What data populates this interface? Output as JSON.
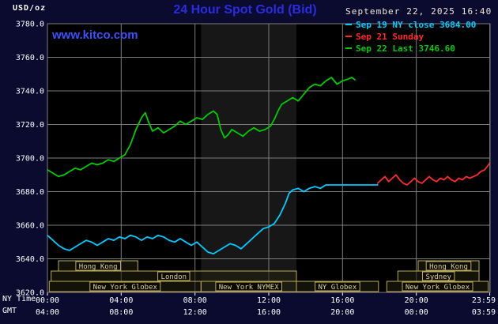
{
  "header": {
    "units": "USD/oz",
    "title": "24 Hour Spot Gold (Bid)",
    "datetime": "September 22, 2025 16:40",
    "watermark": "www.kitco.com"
  },
  "legend": [
    {
      "label": "Sep 19 NY close 3684.00",
      "color": "#00ccff"
    },
    {
      "label": "Sep 21 Sunday",
      "color": "#ff2a2a"
    },
    {
      "label": "Sep 22 Last 3746.60",
      "color": "#00cc00"
    }
  ],
  "axes": {
    "y_ticks": [
      "3780.0",
      "3760.0",
      "3740.0",
      "3720.0",
      "3700.0",
      "3680.0",
      "3660.0",
      "3640.0",
      "3620.0"
    ],
    "tick_hours": [
      0,
      4,
      8,
      12,
      16,
      20,
      23.983
    ],
    "x_rows": [
      {
        "label": "NY Time",
        "ticks": [
          "00:00",
          "04:00",
          "08:00",
          "12:00",
          "16:00",
          "20:00",
          "23:59"
        ]
      },
      {
        "label": "GMT",
        "ticks": [
          "04:00",
          "08:00",
          "12:00",
          "16:00",
          "20:00",
          "00:00",
          "03:59"
        ]
      }
    ]
  },
  "sessions": [
    {
      "row": 0,
      "label": "Hong Kong",
      "start": 0.6,
      "end": 4.9
    },
    {
      "row": 0,
      "label": "Hong Kong",
      "start": 20.1,
      "end": 23.4
    },
    {
      "row": 1,
      "label": "London",
      "start": 0.2,
      "end": 13.5
    },
    {
      "row": 1,
      "label": "Sydney",
      "start": 19.0,
      "end": 23.4
    },
    {
      "row": 2,
      "label": "New York Globex",
      "start": 0.1,
      "end": 8.33
    },
    {
      "row": 2,
      "label": "New York NYMEX",
      "start": 8.33,
      "end": 13.5
    },
    {
      "row": 2,
      "label": "NY Globex",
      "start": 13.5,
      "end": 17.95
    },
    {
      "row": 2,
      "label": "New York Globex",
      "start": 18.4,
      "end": 23.9
    }
  ],
  "chart_data": {
    "type": "line",
    "title": "24 Hour Spot Gold (Bid)",
    "ylabel": "USD/oz",
    "xlabel": "NY Time (hours)",
    "ylim": [
      3620,
      3780
    ],
    "xlim": [
      0,
      24
    ],
    "y_grid_step": 20,
    "grid": true,
    "legend_position": "top-right",
    "highlight_band_x": [
      8.33,
      13.5
    ],
    "series": [
      {
        "name": "Sep 19 NY close",
        "color": "#00ccff",
        "close_value": 3684.0,
        "points": [
          [
            0,
            3654
          ],
          [
            0.3,
            3651
          ],
          [
            0.6,
            3648
          ],
          [
            0.9,
            3646
          ],
          [
            1.2,
            3645
          ],
          [
            1.5,
            3647
          ],
          [
            1.8,
            3649
          ],
          [
            2.1,
            3651
          ],
          [
            2.4,
            3650
          ],
          [
            2.7,
            3648
          ],
          [
            3,
            3650
          ],
          [
            3.3,
            3652
          ],
          [
            3.6,
            3651
          ],
          [
            3.9,
            3653
          ],
          [
            4.2,
            3652
          ],
          [
            4.5,
            3654
          ],
          [
            4.8,
            3653
          ],
          [
            5.1,
            3651
          ],
          [
            5.4,
            3653
          ],
          [
            5.7,
            3652
          ],
          [
            6,
            3654
          ],
          [
            6.3,
            3653
          ],
          [
            6.6,
            3651
          ],
          [
            6.9,
            3650
          ],
          [
            7.2,
            3652
          ],
          [
            7.5,
            3650
          ],
          [
            7.8,
            3648
          ],
          [
            8.1,
            3650
          ],
          [
            8.4,
            3647
          ],
          [
            8.7,
            3644
          ],
          [
            9,
            3643
          ],
          [
            9.3,
            3645
          ],
          [
            9.6,
            3647
          ],
          [
            9.9,
            3649
          ],
          [
            10.2,
            3648
          ],
          [
            10.5,
            3646
          ],
          [
            10.8,
            3649
          ],
          [
            11.1,
            3652
          ],
          [
            11.4,
            3655
          ],
          [
            11.7,
            3658
          ],
          [
            12,
            3659
          ],
          [
            12.3,
            3661
          ],
          [
            12.6,
            3666
          ],
          [
            12.9,
            3673
          ],
          [
            13.1,
            3679
          ],
          [
            13.3,
            3681
          ],
          [
            13.6,
            3682
          ],
          [
            13.9,
            3680
          ],
          [
            14.2,
            3682
          ],
          [
            14.5,
            3683
          ],
          [
            14.8,
            3682
          ],
          [
            15.1,
            3684
          ],
          [
            15.5,
            3684
          ],
          [
            16,
            3684
          ],
          [
            16.5,
            3684
          ],
          [
            17,
            3684
          ],
          [
            17.5,
            3684
          ],
          [
            17.9,
            3684
          ]
        ]
      },
      {
        "name": "Sep 21 Sunday",
        "color": "#ff2a2a",
        "points": [
          [
            17.9,
            3685
          ],
          [
            18.1,
            3687
          ],
          [
            18.3,
            3689
          ],
          [
            18.5,
            3686
          ],
          [
            18.7,
            3688
          ],
          [
            18.9,
            3690
          ],
          [
            19.1,
            3687
          ],
          [
            19.3,
            3685
          ],
          [
            19.5,
            3684
          ],
          [
            19.7,
            3686
          ],
          [
            19.9,
            3688
          ],
          [
            20.1,
            3686
          ],
          [
            20.3,
            3685
          ],
          [
            20.5,
            3687
          ],
          [
            20.7,
            3689
          ],
          [
            20.9,
            3687
          ],
          [
            21.1,
            3686
          ],
          [
            21.3,
            3688
          ],
          [
            21.5,
            3687
          ],
          [
            21.7,
            3689
          ],
          [
            21.9,
            3687
          ],
          [
            22.1,
            3686
          ],
          [
            22.3,
            3688
          ],
          [
            22.5,
            3687
          ],
          [
            22.7,
            3689
          ],
          [
            22.9,
            3688
          ],
          [
            23.1,
            3689
          ],
          [
            23.3,
            3690
          ],
          [
            23.5,
            3692
          ],
          [
            23.7,
            3693
          ],
          [
            23.85,
            3695
          ],
          [
            23.98,
            3697
          ]
        ]
      },
      {
        "name": "Sep 22 Last",
        "color": "#00cc00",
        "last_value": 3746.6,
        "points": [
          [
            0,
            3693
          ],
          [
            0.3,
            3691
          ],
          [
            0.6,
            3689
          ],
          [
            0.9,
            3690
          ],
          [
            1.2,
            3692
          ],
          [
            1.5,
            3694
          ],
          [
            1.8,
            3693
          ],
          [
            2.1,
            3695
          ],
          [
            2.4,
            3697
          ],
          [
            2.7,
            3696
          ],
          [
            3,
            3697
          ],
          [
            3.3,
            3699
          ],
          [
            3.6,
            3698
          ],
          [
            3.9,
            3700
          ],
          [
            4.2,
            3702
          ],
          [
            4.5,
            3708
          ],
          [
            4.8,
            3717
          ],
          [
            5.1,
            3724
          ],
          [
            5.3,
            3727
          ],
          [
            5.5,
            3721
          ],
          [
            5.7,
            3716
          ],
          [
            6,
            3718
          ],
          [
            6.3,
            3715
          ],
          [
            6.6,
            3717
          ],
          [
            6.9,
            3719
          ],
          [
            7.2,
            3722
          ],
          [
            7.5,
            3720
          ],
          [
            7.8,
            3722
          ],
          [
            8.1,
            3724
          ],
          [
            8.4,
            3723
          ],
          [
            8.7,
            3726
          ],
          [
            9,
            3728
          ],
          [
            9.2,
            3726
          ],
          [
            9.4,
            3717
          ],
          [
            9.6,
            3712
          ],
          [
            9.8,
            3714
          ],
          [
            10,
            3717
          ],
          [
            10.3,
            3715
          ],
          [
            10.6,
            3713
          ],
          [
            10.9,
            3716
          ],
          [
            11.2,
            3718
          ],
          [
            11.5,
            3716
          ],
          [
            11.8,
            3717
          ],
          [
            12.1,
            3719
          ],
          [
            12.3,
            3723
          ],
          [
            12.5,
            3728
          ],
          [
            12.7,
            3732
          ],
          [
            13,
            3734
          ],
          [
            13.3,
            3736
          ],
          [
            13.6,
            3734
          ],
          [
            13.9,
            3738
          ],
          [
            14.2,
            3742
          ],
          [
            14.5,
            3744
          ],
          [
            14.8,
            3743
          ],
          [
            15.1,
            3746
          ],
          [
            15.4,
            3748
          ],
          [
            15.7,
            3744
          ],
          [
            16,
            3746
          ],
          [
            16.3,
            3747
          ],
          [
            16.5,
            3748
          ],
          [
            16.67,
            3746.6
          ]
        ]
      }
    ]
  },
  "colors": {
    "page_bg": "#0b0b30",
    "plot_bg": "#000000",
    "grid": "#7d7d7d",
    "band": "#171717",
    "title": "#2b2be0",
    "watermark": "#3a50ff",
    "datetime": "#f0e8d4",
    "axis_text": "#ffffff",
    "session_border": "#b9a95c",
    "session_fill": "rgba(35,32,14,0.55)",
    "session_label_fill": "#0c0b03",
    "session_text": "#ddd09a"
  }
}
